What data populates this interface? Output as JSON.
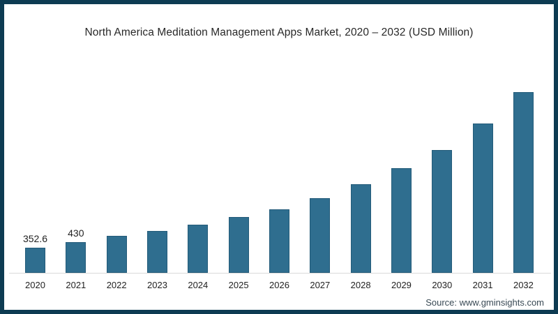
{
  "source": "Source: www.gminsights.com",
  "colors": {
    "frame_border": "#0d3b52",
    "background": "#ffffff",
    "bar": "#2f6e8f",
    "axis_line": "#d9d9d9",
    "title_text": "#282828",
    "label_text": "#1f1f1f",
    "source_text": "#3a4a55"
  },
  "chart_data": {
    "type": "bar",
    "title": "North America Meditation Management Apps Market, 2020 – 2032 (USD Million)",
    "categories": [
      "2020",
      "2021",
      "2022",
      "2023",
      "2024",
      "2025",
      "2026",
      "2027",
      "2028",
      "2029",
      "2030",
      "2031",
      "2032"
    ],
    "values": [
      352.6,
      430,
      515,
      590,
      675,
      780,
      895,
      1050,
      1240,
      1465,
      1725,
      2090,
      2530
    ],
    "value_labels": [
      "352.6",
      "430",
      "",
      "",
      "",
      "",
      "",
      "",
      "",
      "",
      "",
      "",
      ""
    ],
    "unit": "USD Million",
    "xlabel": "",
    "ylabel": "",
    "ylim": [
      0,
      2650
    ],
    "y_axis_visible": false,
    "grid": false,
    "legend": "none",
    "bar_color": "#2f6e8f"
  }
}
